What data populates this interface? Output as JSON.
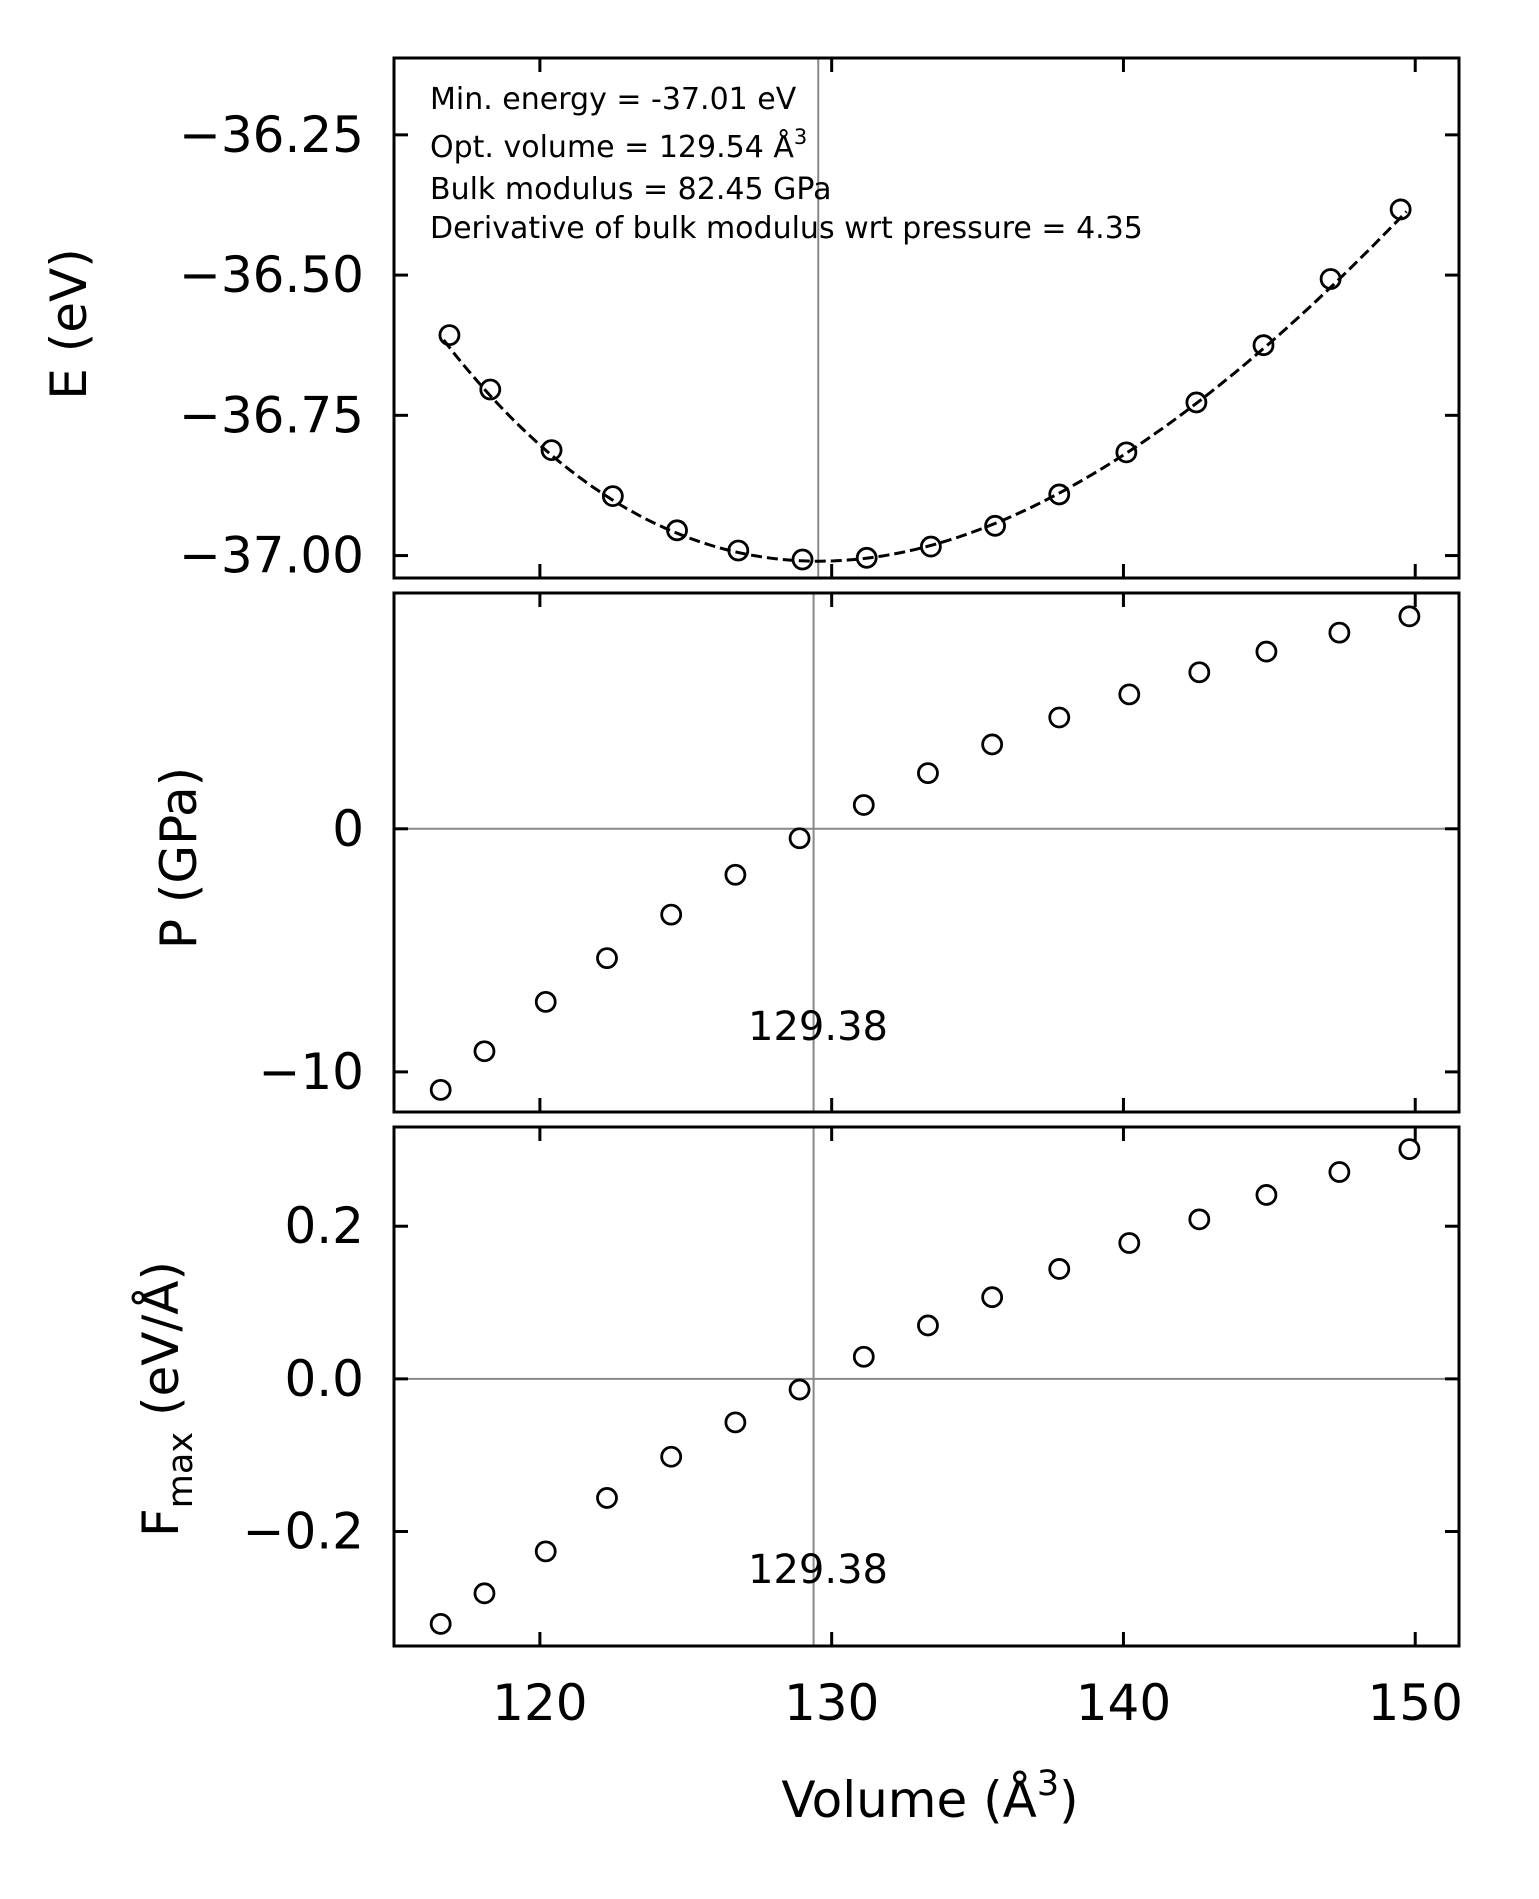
{
  "chart_data": [
    {
      "type": "scatter",
      "panel": "energy",
      "ylabel": "E (eV)",
      "xlim": [
        115,
        151.5
      ],
      "ylim": [
        -37.04,
        -36.113
      ],
      "yticks": [
        -37.0,
        -36.75,
        -36.5,
        -36.25
      ],
      "ytick_labels": [
        "−37.00",
        "−36.75",
        "−36.50",
        "−36.25"
      ],
      "xticks": [
        120,
        130,
        140,
        150
      ],
      "series": [
        {
          "name": "E data",
          "marker": "open-circle",
          "x": [
            116.9,
            118.3,
            120.4,
            122.5,
            124.7,
            126.8,
            129.0,
            131.2,
            133.4,
            135.6,
            137.8,
            140.1,
            142.5,
            144.8,
            147.1,
            149.5
          ],
          "y": [
            -36.607,
            -36.704,
            -36.812,
            -36.894,
            -36.955,
            -36.991,
            -37.007,
            -37.004,
            -36.984,
            -36.947,
            -36.891,
            -36.816,
            -36.727,
            -36.625,
            -36.507,
            -36.383
          ]
        },
        {
          "name": "EOS fit",
          "style": "dashed",
          "fit": {
            "e0": -37.01,
            "v0": 129.54,
            "b0_gpa": 82.45,
            "b0_prime": 4.35
          },
          "x_range": [
            116.7,
            149.7
          ]
        }
      ],
      "vline": 129.54,
      "annotations": [
        "Min. energy = -37.01 eV",
        "Opt. volume = 129.54 Å",
        "Bulk modulus = 82.45 GPa",
        "Derivative of bulk modulus wrt pressure = 4.35"
      ],
      "annotation_superscript": "3"
    },
    {
      "type": "scatter",
      "panel": "pressure",
      "ylabel": "P (GPa)",
      "xlim": [
        115,
        151.5
      ],
      "ylim": [
        -11.65,
        9.7
      ],
      "yticks": [
        -10,
        0
      ],
      "ytick_labels": [
        "−10",
        "0"
      ],
      "xticks": [
        120,
        130,
        140,
        150
      ],
      "series": [
        {
          "name": "P data",
          "marker": "open-circle",
          "x": [
            116.6,
            118.1,
            120.2,
            122.3,
            124.5,
            126.7,
            128.9,
            131.1,
            133.3,
            135.5,
            137.8,
            140.2,
            142.6,
            144.9,
            147.4,
            149.8
          ],
          "y": [
            -10.74,
            -9.15,
            -7.12,
            -5.32,
            -3.53,
            -1.89,
            -0.39,
            0.98,
            2.29,
            3.47,
            4.58,
            5.53,
            6.44,
            7.29,
            8.07,
            8.74
          ]
        }
      ],
      "vline": 129.38,
      "hline": 0,
      "vline_label": "129.38"
    },
    {
      "type": "scatter",
      "panel": "force",
      "ylabel": "F",
      "ylabel_subscript": "max",
      "ylabel_suffix": " (eV/Å)",
      "xlim": [
        115,
        151.5
      ],
      "ylim": [
        -0.35,
        0.33
      ],
      "yticks": [
        -0.2,
        0.0,
        0.2
      ],
      "ytick_labels": [
        "−0.2",
        "0.0",
        "0.2"
      ],
      "xticks": [
        120,
        130,
        140,
        150
      ],
      "xtick_labels": [
        "120",
        "130",
        "140",
        "150"
      ],
      "xlabel": "Volume (Å",
      "xlabel_superscript": "3",
      "xlabel_suffix": ")",
      "series": [
        {
          "name": "Fmax data",
          "marker": "open-circle",
          "x": [
            116.6,
            118.1,
            120.2,
            122.3,
            124.5,
            126.7,
            128.9,
            131.1,
            133.3,
            135.5,
            137.8,
            140.2,
            142.6,
            144.9,
            147.4,
            149.8
          ],
          "y": [
            -0.321,
            -0.281,
            -0.226,
            -0.156,
            -0.102,
            -0.057,
            -0.014,
            0.029,
            0.07,
            0.107,
            0.144,
            0.178,
            0.209,
            0.241,
            0.271,
            0.301
          ]
        }
      ],
      "vline": 129.38,
      "hline": 0,
      "vline_label": "129.38"
    }
  ],
  "colors": {
    "axes": "#000000",
    "refline": "#888888",
    "marker": "#000000"
  }
}
